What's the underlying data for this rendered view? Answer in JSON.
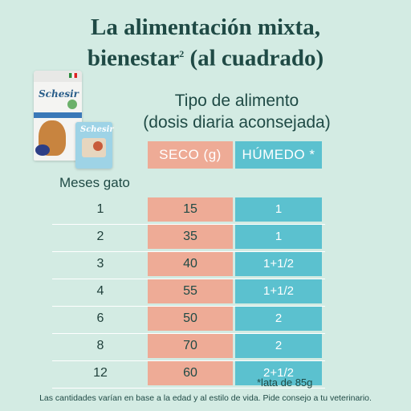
{
  "title": {
    "line1": "La alimentación mixta,",
    "line2_main": "bienestar",
    "line2_sup": "2",
    "line2_rest": " (al cuadrado)"
  },
  "subtitle": {
    "line1": "Tipo de alimento",
    "line2": "(dosis diaria aconsejada)"
  },
  "product": {
    "bag_brand": "Schesir",
    "tray_brand": "Schesir"
  },
  "table": {
    "row_header": "Meses gato",
    "col_dry": "SECO (g)",
    "col_wet": "HÚMEDO *",
    "rows": [
      {
        "month": "1",
        "dry": "15",
        "wet": "1"
      },
      {
        "month": "2",
        "dry": "35",
        "wet": "1"
      },
      {
        "month": "3",
        "dry": "40",
        "wet": "1+1/2"
      },
      {
        "month": "4",
        "dry": "55",
        "wet": "1+1/2"
      },
      {
        "month": "6",
        "dry": "50",
        "wet": "2"
      },
      {
        "month": "8",
        "dry": "70",
        "wet": "2"
      },
      {
        "month": "12",
        "dry": "60",
        "wet": "2+1/2"
      }
    ]
  },
  "note": "*lata de 85g",
  "disclaimer": "Las cantidades varían en base a la edad y al estilo de vida. Pide consejo a tu veterinario.",
  "colors": {
    "background": "#d3ebe3",
    "dry_column": "#eeab96",
    "wet_column": "#5bc1cf",
    "text": "#1f4a45"
  }
}
